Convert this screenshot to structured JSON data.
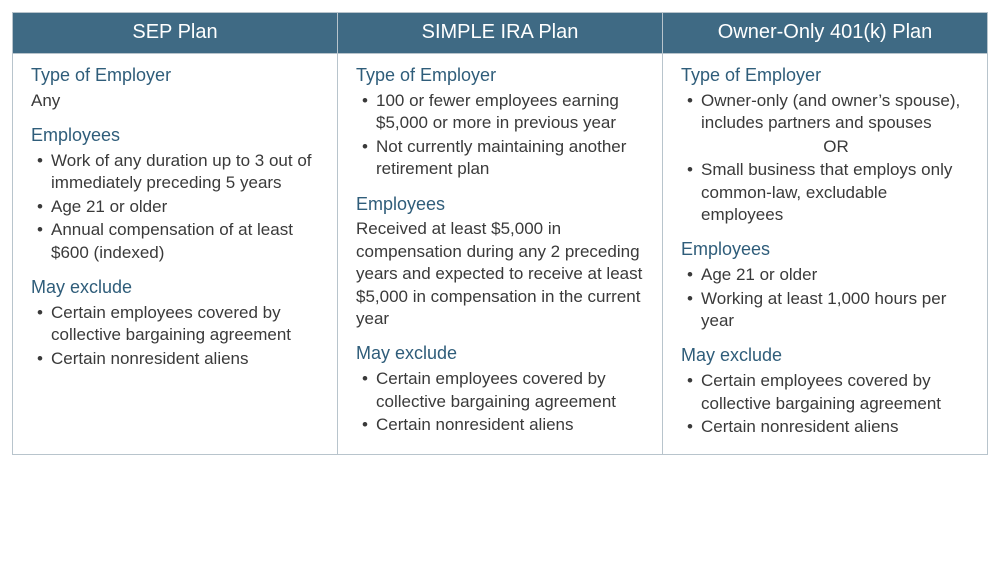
{
  "table": {
    "border_color": "#b8c4cc",
    "header_bg": "#3f6a84",
    "header_text_color": "#ffffff",
    "section_title_color": "#2f5d7a",
    "body_text_color": "#3a3a3a",
    "header_fontsize": 20,
    "body_fontsize": 17,
    "columns": [
      {
        "header": "SEP Plan",
        "sections": [
          {
            "title": "Type of Employer",
            "plain": "Any"
          },
          {
            "title": "Employees",
            "bullets": [
              "Work of any duration up to 3 out of immediately preceding 5 years",
              "Age 21 or older",
              "Annual compensation of at least $600 (indexed)"
            ]
          },
          {
            "title": "May exclude",
            "bullets": [
              "Certain employees covered by collective bargaining agreement",
              "Certain nonresident aliens"
            ]
          }
        ]
      },
      {
        "header": "SIMPLE IRA Plan",
        "sections": [
          {
            "title": "Type of Employer",
            "bullets": [
              "100 or fewer employees earning $5,000 or more in previous year",
              "Not currently maintaining another retirement plan"
            ]
          },
          {
            "title": "Employees",
            "plain": "Received at least $5,000 in compensation during any 2 preceding years and expected to receive at least $5,000 in compensation in the current year"
          },
          {
            "title": "May exclude",
            "bullets": [
              "Certain employees covered by collective bargaining agreement",
              "Certain nonresident aliens"
            ]
          }
        ]
      },
      {
        "header": "Owner-Only 401(k) Plan",
        "sections": [
          {
            "title": "Type of Employer",
            "bullets_with_or": {
              "before": "Owner-only (and owner’s spouse), includes partners and spouses",
              "or_text": "OR",
              "after": "Small business that employs only common-law, excludable employees"
            }
          },
          {
            "title": "Employees",
            "bullets": [
              "Age 21 or older",
              "Working at least 1,000 hours per year"
            ]
          },
          {
            "title": "May exclude",
            "bullets": [
              "Certain employees covered by collective bargaining agreement",
              "Certain nonresident aliens"
            ]
          }
        ]
      }
    ]
  }
}
